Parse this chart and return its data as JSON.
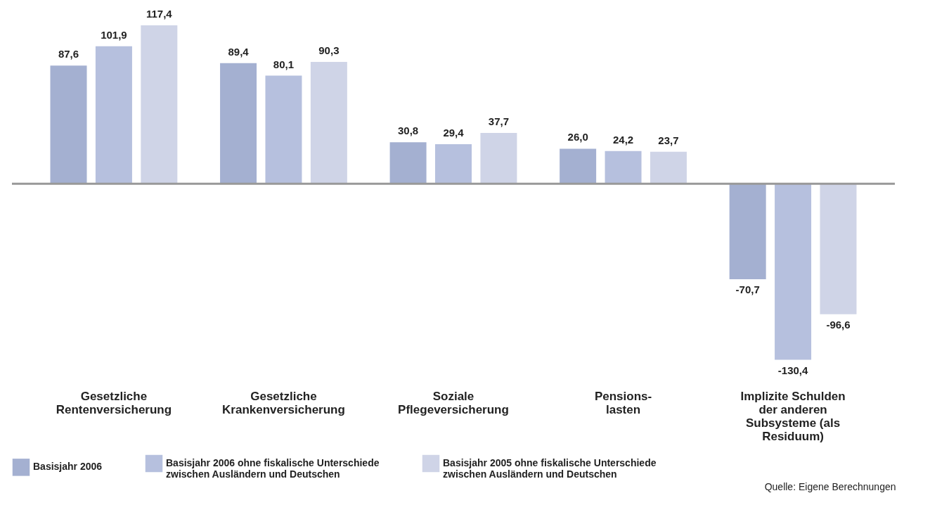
{
  "chart_data": {
    "type": "bar",
    "categories": [
      "Gesetzliche Rentenversicherung",
      "Gesetzliche Krankenversicherung",
      "Soziale Pflegeversicherung",
      "Pensions-lasten",
      "Implizite Schulden der anderen Subsysteme (als Residuum)"
    ],
    "series": [
      {
        "name": "Basisjahr 2006",
        "color": "#a4b0d1",
        "values": [
          87.6,
          89.4,
          30.8,
          26.0,
          -70.7
        ],
        "value_labels": [
          "87,6",
          "89,4",
          "30,8",
          "26,0",
          "-70,7"
        ]
      },
      {
        "name": "Basisjahr 2006 ohne fiskalische Unterschiede zwischen Ausländern und Deutschen",
        "color": "#b6c0de",
        "values": [
          101.9,
          80.1,
          29.4,
          24.2,
          -130.4
        ],
        "value_labels": [
          "101,9",
          "80,1",
          "29,4",
          "24,2",
          "-130,4"
        ]
      },
      {
        "name": "Basisjahr 2005 ohne fiskalische Unterschiede zwischen Ausländern und Deutschen",
        "color": "#cfd4e7",
        "values": [
          117.4,
          90.3,
          37.7,
          23.7,
          -96.6
        ],
        "value_labels": [
          "117,4",
          "90,3",
          "37,7",
          "23,7",
          "-96,6"
        ]
      }
    ],
    "legend": "bottom",
    "grid": false,
    "annotations": [
      "Quelle: Eigene Berechnungen"
    ]
  }
}
